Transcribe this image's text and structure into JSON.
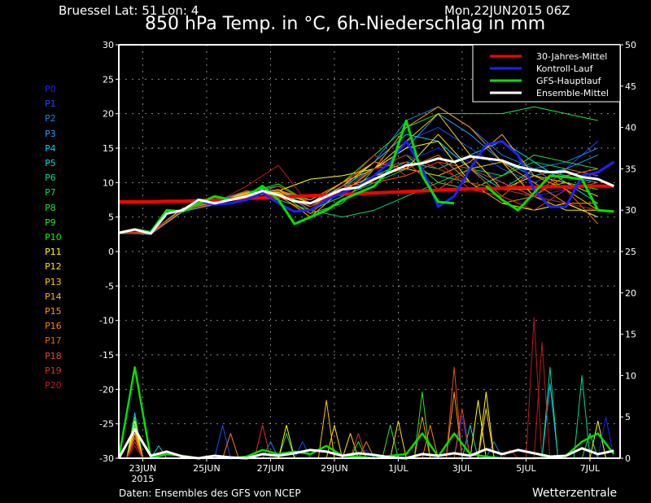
{
  "header": {
    "location": "Bruessel  Lat: 51 Lon: 4",
    "run": "Mon,22JUN2015 06Z",
    "title": "850 hPa Temp. in °C, 6h-Niederschlag in mm"
  },
  "footer": {
    "source": "Daten: Ensembles des GFS von NCEP",
    "brand": "Wetterzentrale"
  },
  "chart_data": {
    "type": "line",
    "title": "850 hPa Temp. in °C, 6h-Niederschlag in mm",
    "x_start": "2015-06-22T06Z",
    "x_step_hours": 12,
    "member_step_hours": 24,
    "x_ticks": [
      "23JUN",
      "25JUN",
      "27JUN",
      "29JUN",
      "1JUL",
      "3JUL",
      "5JUL",
      "7JUL"
    ],
    "x_tick_year": "2015",
    "y_left": {
      "label": "°C",
      "range": [
        -30,
        30
      ],
      "ticks": [
        30,
        25,
        20,
        15,
        10,
        5,
        0,
        -5,
        -10,
        -15,
        -20,
        -25,
        -30
      ]
    },
    "y_right": {
      "label": "mm",
      "range": [
        0,
        50
      ],
      "ticks": [
        50,
        45,
        40,
        35,
        30,
        25,
        20,
        15,
        10,
        5,
        0
      ]
    },
    "grid": true,
    "legend_position": "top-right",
    "legend": [
      {
        "name": "30-Jahres-Mittel",
        "color": "#ff0000"
      },
      {
        "name": "Kontroll-Lauf",
        "color": "#2020ff"
      },
      {
        "name": "GFS-Hauptlauf",
        "color": "#00e000"
      },
      {
        "name": "Ensemble-Mittel",
        "color": "#ffffff"
      }
    ],
    "climate_mean": [
      7.2,
      7.2,
      7.2,
      7.3,
      7.3,
      7.4,
      7.5,
      7.6,
      7.7,
      7.8,
      7.9,
      8.0,
      8.1,
      8.2,
      8.3,
      8.4,
      8.5,
      8.6,
      8.7,
      8.8,
      8.9,
      9.0,
      9.1,
      9.1,
      9.2,
      9.3,
      9.3,
      9.4,
      9.4,
      9.5,
      9.5,
      9.5
    ],
    "control": [
      2.7,
      3.2,
      2.6,
      5.5,
      6.0,
      7.3,
      6.8,
      7.0,
      7.5,
      8.5,
      7.0,
      5.8,
      6.0,
      7.5,
      8.5,
      9.5,
      11,
      13,
      16,
      12,
      6.5,
      8,
      12,
      15.5,
      16,
      14,
      9,
      6.5,
      6.5,
      11,
      11.5,
      13
    ],
    "gfs_main": [
      2.7,
      3.2,
      2.8,
      6.0,
      5.8,
      7.0,
      8.0,
      7.5,
      8.0,
      9.5,
      7.5,
      4.0,
      5.0,
      6.0,
      7.5,
      8.5,
      9.5,
      12,
      19,
      11,
      7.2,
      7.0,
      null,
      9.5,
      7.5,
      6.0,
      8.5,
      11,
      10.8,
      10.5,
      6.0,
      5.8
    ],
    "ensemble_mean": [
      2.7,
      3.2,
      2.6,
      5.5,
      6.0,
      7.5,
      7.0,
      7.5,
      8.0,
      8.8,
      8.2,
      7.3,
      7.0,
      8.0,
      9.0,
      9.3,
      10.5,
      11.5,
      12.5,
      12.8,
      13.5,
      13.0,
      13.8,
      13.5,
      13.2,
      12.3,
      11.8,
      11.5,
      11.6,
      10.8,
      10.5,
      9.5
    ],
    "precip_mean": [
      0,
      3.5,
      0.3,
      0.8,
      0.2,
      0,
      0.3,
      0.1,
      0,
      0.5,
      0.3,
      0.6,
      1.0,
      0.8,
      0.3,
      0.6,
      0.4,
      0.1,
      0,
      0.5,
      0.3,
      0.6,
      0.3,
      1.1,
      0.5,
      1.0,
      0.6,
      0.2,
      0.3,
      1.2,
      0.5,
      0.9
    ],
    "precip_gfs": [
      0,
      11,
      0,
      0.5,
      0.3,
      0,
      0.3,
      0,
      0.2,
      1,
      0.5,
      0.8,
      0.5,
      1.5,
      0.3,
      0.2,
      0,
      0.3,
      0.5,
      3,
      0.2,
      3,
      0.5,
      0.2,
      0,
      0,
      0,
      0.1,
      0.3,
      2,
      3,
      0.5
    ],
    "members": [
      {
        "name": "P0",
        "color": "#2020ff",
        "temp": [
          2.7,
          2.8,
          6.2,
          7.2,
          8.5,
          8.0,
          6.5,
          9.0,
          11,
          13,
          15,
          13,
          10,
          8,
          9,
          11
        ],
        "precip": [
          [
            "06-22T18",
            4
          ],
          [
            "06-30T00",
            1
          ],
          [
            "07-03T00",
            5
          ],
          [
            "07-07T12",
            5
          ]
        ]
      },
      {
        "name": "P1",
        "color": "#1a4cff",
        "temp": [
          2.7,
          2.6,
          6.0,
          7.0,
          8.2,
          8.6,
          6.0,
          8.5,
          12,
          16,
          18,
          15,
          12,
          10,
          12,
          16
        ],
        "precip": [
          [
            "06-22T18",
            4.5
          ],
          [
            "06-25T12",
            4
          ],
          [
            "06-28T00",
            2
          ]
        ]
      },
      {
        "name": "P2",
        "color": "#1e7ff0",
        "temp": [
          2.8,
          2.7,
          6.1,
          7.3,
          8.8,
          8.2,
          7.5,
          10,
          13,
          19,
          21,
          18,
          14,
          12,
          13,
          15
        ],
        "precip": [
          [
            "06-22T18",
            5
          ],
          [
            "06-27T00",
            2
          ],
          [
            "07-04T00",
            2
          ]
        ]
      },
      {
        "name": "P3",
        "color": "#1fa0ff",
        "temp": [
          2.7,
          2.5,
          5.8,
          6.8,
          8.4,
          9.0,
          7.0,
          9.5,
          12,
          15,
          20,
          17,
          13,
          11,
          12,
          14
        ],
        "precip": [
          [
            "06-22T18",
            4
          ],
          [
            "06-29T12",
            3
          ],
          [
            "07-07T00",
            3
          ]
        ]
      },
      {
        "name": "P4",
        "color": "#00c8ff",
        "temp": [
          2.6,
          2.7,
          6.0,
          7.1,
          8.0,
          8.5,
          6.5,
          9.0,
          13,
          17,
          16,
          12,
          9,
          8,
          7,
          5
        ],
        "precip": [
          [
            "06-22T18",
            5.5
          ],
          [
            "07-03T18",
            6
          ],
          [
            "07-05T18",
            9
          ]
        ]
      },
      {
        "name": "P5",
        "color": "#00d8d8",
        "temp": [
          2.7,
          2.8,
          6.3,
          7.0,
          8.6,
          9.5,
          7.0,
          9.0,
          11,
          13,
          12,
          14,
          16,
          13,
          10,
          7
        ],
        "precip": [
          [
            "06-22T18",
            4
          ],
          [
            "06-23T12",
            1.5
          ],
          [
            "07-03T06",
            4
          ]
        ]
      },
      {
        "name": "P6",
        "color": "#00d890",
        "temp": [
          2.7,
          2.6,
          5.9,
          7.2,
          8.2,
          9.0,
          6.0,
          8.0,
          10,
          12,
          11,
          10,
          9,
          12,
          11,
          10
        ],
        "precip": [
          [
            "06-22T18",
            3.5
          ],
          [
            "07-05T18",
            11
          ],
          [
            "07-06T18",
            10
          ]
        ]
      },
      {
        "name": "P7",
        "color": "#10d060",
        "temp": [
          2.8,
          2.7,
          6.2,
          7.4,
          8.0,
          7.5,
          6.0,
          5.0,
          6.0,
          8.0,
          10,
          12,
          11,
          13,
          12,
          11
        ],
        "precip": [
          [
            "06-22T18",
            3
          ],
          [
            "06-27T12",
            3
          ],
          [
            "07-07T00",
            3
          ]
        ]
      },
      {
        "name": "P8",
        "color": "#20e040",
        "temp": [
          2.7,
          2.8,
          6.0,
          7.0,
          8.8,
          8.0,
          7.5,
          10,
          14,
          18,
          20,
          20,
          20,
          21,
          20,
          19
        ],
        "precip": [
          [
            "06-22T18",
            4
          ],
          [
            "06-30T00",
            2
          ]
        ]
      },
      {
        "name": "P9",
        "color": "#30e030",
        "temp": [
          2.7,
          2.7,
          6.1,
          7.2,
          8.3,
          8.5,
          5.5,
          7.0,
          12,
          14,
          10,
          9,
          11,
          14,
          13,
          12
        ],
        "precip": [
          [
            "06-22T18",
            3.5
          ],
          [
            "07-01T18",
            8
          ],
          [
            "06-30T18",
            4
          ]
        ]
      },
      {
        "name": "P10",
        "color": "#00ff00",
        "temp": [
          2.7,
          2.6,
          6.0,
          7.1,
          8.5,
          9.8,
          7.0,
          8.5,
          12,
          14,
          12,
          10,
          9,
          9,
          10,
          9
        ],
        "precip": [
          [
            "06-22T18",
            5
          ],
          [
            "06-29T18",
            2
          ]
        ]
      },
      {
        "name": "P11",
        "color": "#ffff00",
        "temp": [
          2.7,
          2.8,
          6.2,
          7.0,
          8.0,
          8.8,
          10.5,
          11,
          12,
          15,
          16,
          10,
          7,
          6,
          7,
          5
        ],
        "precip": [
          [
            "06-22T18",
            4.5
          ],
          [
            "06-27T12",
            4
          ],
          [
            "07-03T12",
            7
          ],
          [
            "07-03T18",
            8
          ],
          [
            "07-07T06",
            4.5
          ]
        ]
      },
      {
        "name": "P12",
        "color": "#ffe000",
        "temp": [
          2.7,
          2.7,
          6.0,
          7.3,
          8.4,
          8.6,
          6.5,
          9.5,
          13,
          12,
          17,
          12,
          13,
          8,
          6,
          6
        ],
        "precip": [
          [
            "06-22T18",
            3.5
          ],
          [
            "06-29T00",
            4
          ],
          [
            "07-01T00",
            4.5
          ]
        ]
      },
      {
        "name": "P13",
        "color": "#ffc800",
        "temp": [
          2.8,
          2.6,
          5.9,
          7.0,
          8.2,
          8.8,
          7.0,
          10,
          12,
          16,
          20,
          14,
          9,
          11,
          10,
          8
        ],
        "precip": [
          [
            "06-22T18",
            3
          ],
          [
            "06-28T18",
            7
          ],
          [
            "06-29T12",
            3
          ]
        ]
      },
      {
        "name": "P14",
        "color": "#ffb000",
        "temp": [
          2.7,
          2.7,
          6.1,
          7.2,
          8.6,
          8.2,
          5.0,
          9.0,
          11,
          12,
          11,
          13,
          17,
          11,
          9,
          6
        ],
        "precip": [
          [
            "06-22T18",
            3.5
          ],
          [
            "07-03T18",
            6
          ]
        ]
      },
      {
        "name": "P15",
        "color": "#ff9800",
        "temp": [
          2.7,
          2.8,
          6.0,
          6.9,
          8.0,
          8.5,
          6.5,
          8.5,
          12,
          18,
          21,
          18,
          13,
          10,
          7,
          7
        ],
        "precip": [
          [
            "06-22T18",
            3
          ],
          [
            "07-01T18",
            5
          ],
          [
            "07-02T18",
            8
          ]
        ]
      },
      {
        "name": "P16",
        "color": "#ff8000",
        "temp": [
          2.7,
          2.6,
          6.2,
          7.1,
          8.3,
          8.9,
          7.5,
          10,
          13,
          12,
          14,
          10,
          7,
          8,
          11,
          12
        ],
        "precip": [
          [
            "06-22T18",
            3
          ],
          [
            "06-25T18",
            3
          ],
          [
            "07-02T00",
            4
          ]
        ]
      },
      {
        "name": "P17",
        "color": "#f06000",
        "temp": [
          2.6,
          2.7,
          6.0,
          7.0,
          8.8,
          8.0,
          5.5,
          9.5,
          10,
          11,
          13,
          12,
          8,
          12,
          9,
          4
        ],
        "precip": [
          [
            "06-22T18",
            2.5
          ],
          [
            "06-30T00",
            2
          ]
        ]
      },
      {
        "name": "P18",
        "color": "#e84820",
        "temp": [
          2.7,
          2.8,
          6.1,
          7.3,
          8.0,
          9.5,
          7.0,
          9.0,
          12,
          13,
          9,
          12,
          10,
          8,
          12,
          11
        ],
        "precip": [
          [
            "06-22T18",
            2.5
          ],
          [
            "07-02T18",
            11
          ],
          [
            "07-03T00",
            6
          ]
        ]
      },
      {
        "name": "P19",
        "color": "#e03020",
        "temp": [
          2.7,
          2.6,
          6.0,
          7.0,
          8.2,
          8.8,
          6.0,
          9.5,
          14,
          11,
          13,
          9,
          8,
          6,
          9,
          10
        ],
        "precip": [
          [
            "06-22T18",
            2
          ],
          [
            "06-26T18",
            4
          ],
          [
            "06-29T18",
            3
          ]
        ]
      },
      {
        "name": "P20",
        "color": "#c01818",
        "temp": [
          2.8,
          2.9,
          6.0,
          7.0,
          9.5,
          12.5,
          6.5,
          9.0,
          12,
          14,
          12,
          10,
          9,
          8,
          7,
          6
        ],
        "precip": [
          [
            "06-22T18",
            1.5
          ],
          [
            "07-04T12",
            1
          ],
          [
            "07-05T06",
            17
          ],
          [
            "07-05T12",
            14
          ]
        ]
      }
    ]
  }
}
